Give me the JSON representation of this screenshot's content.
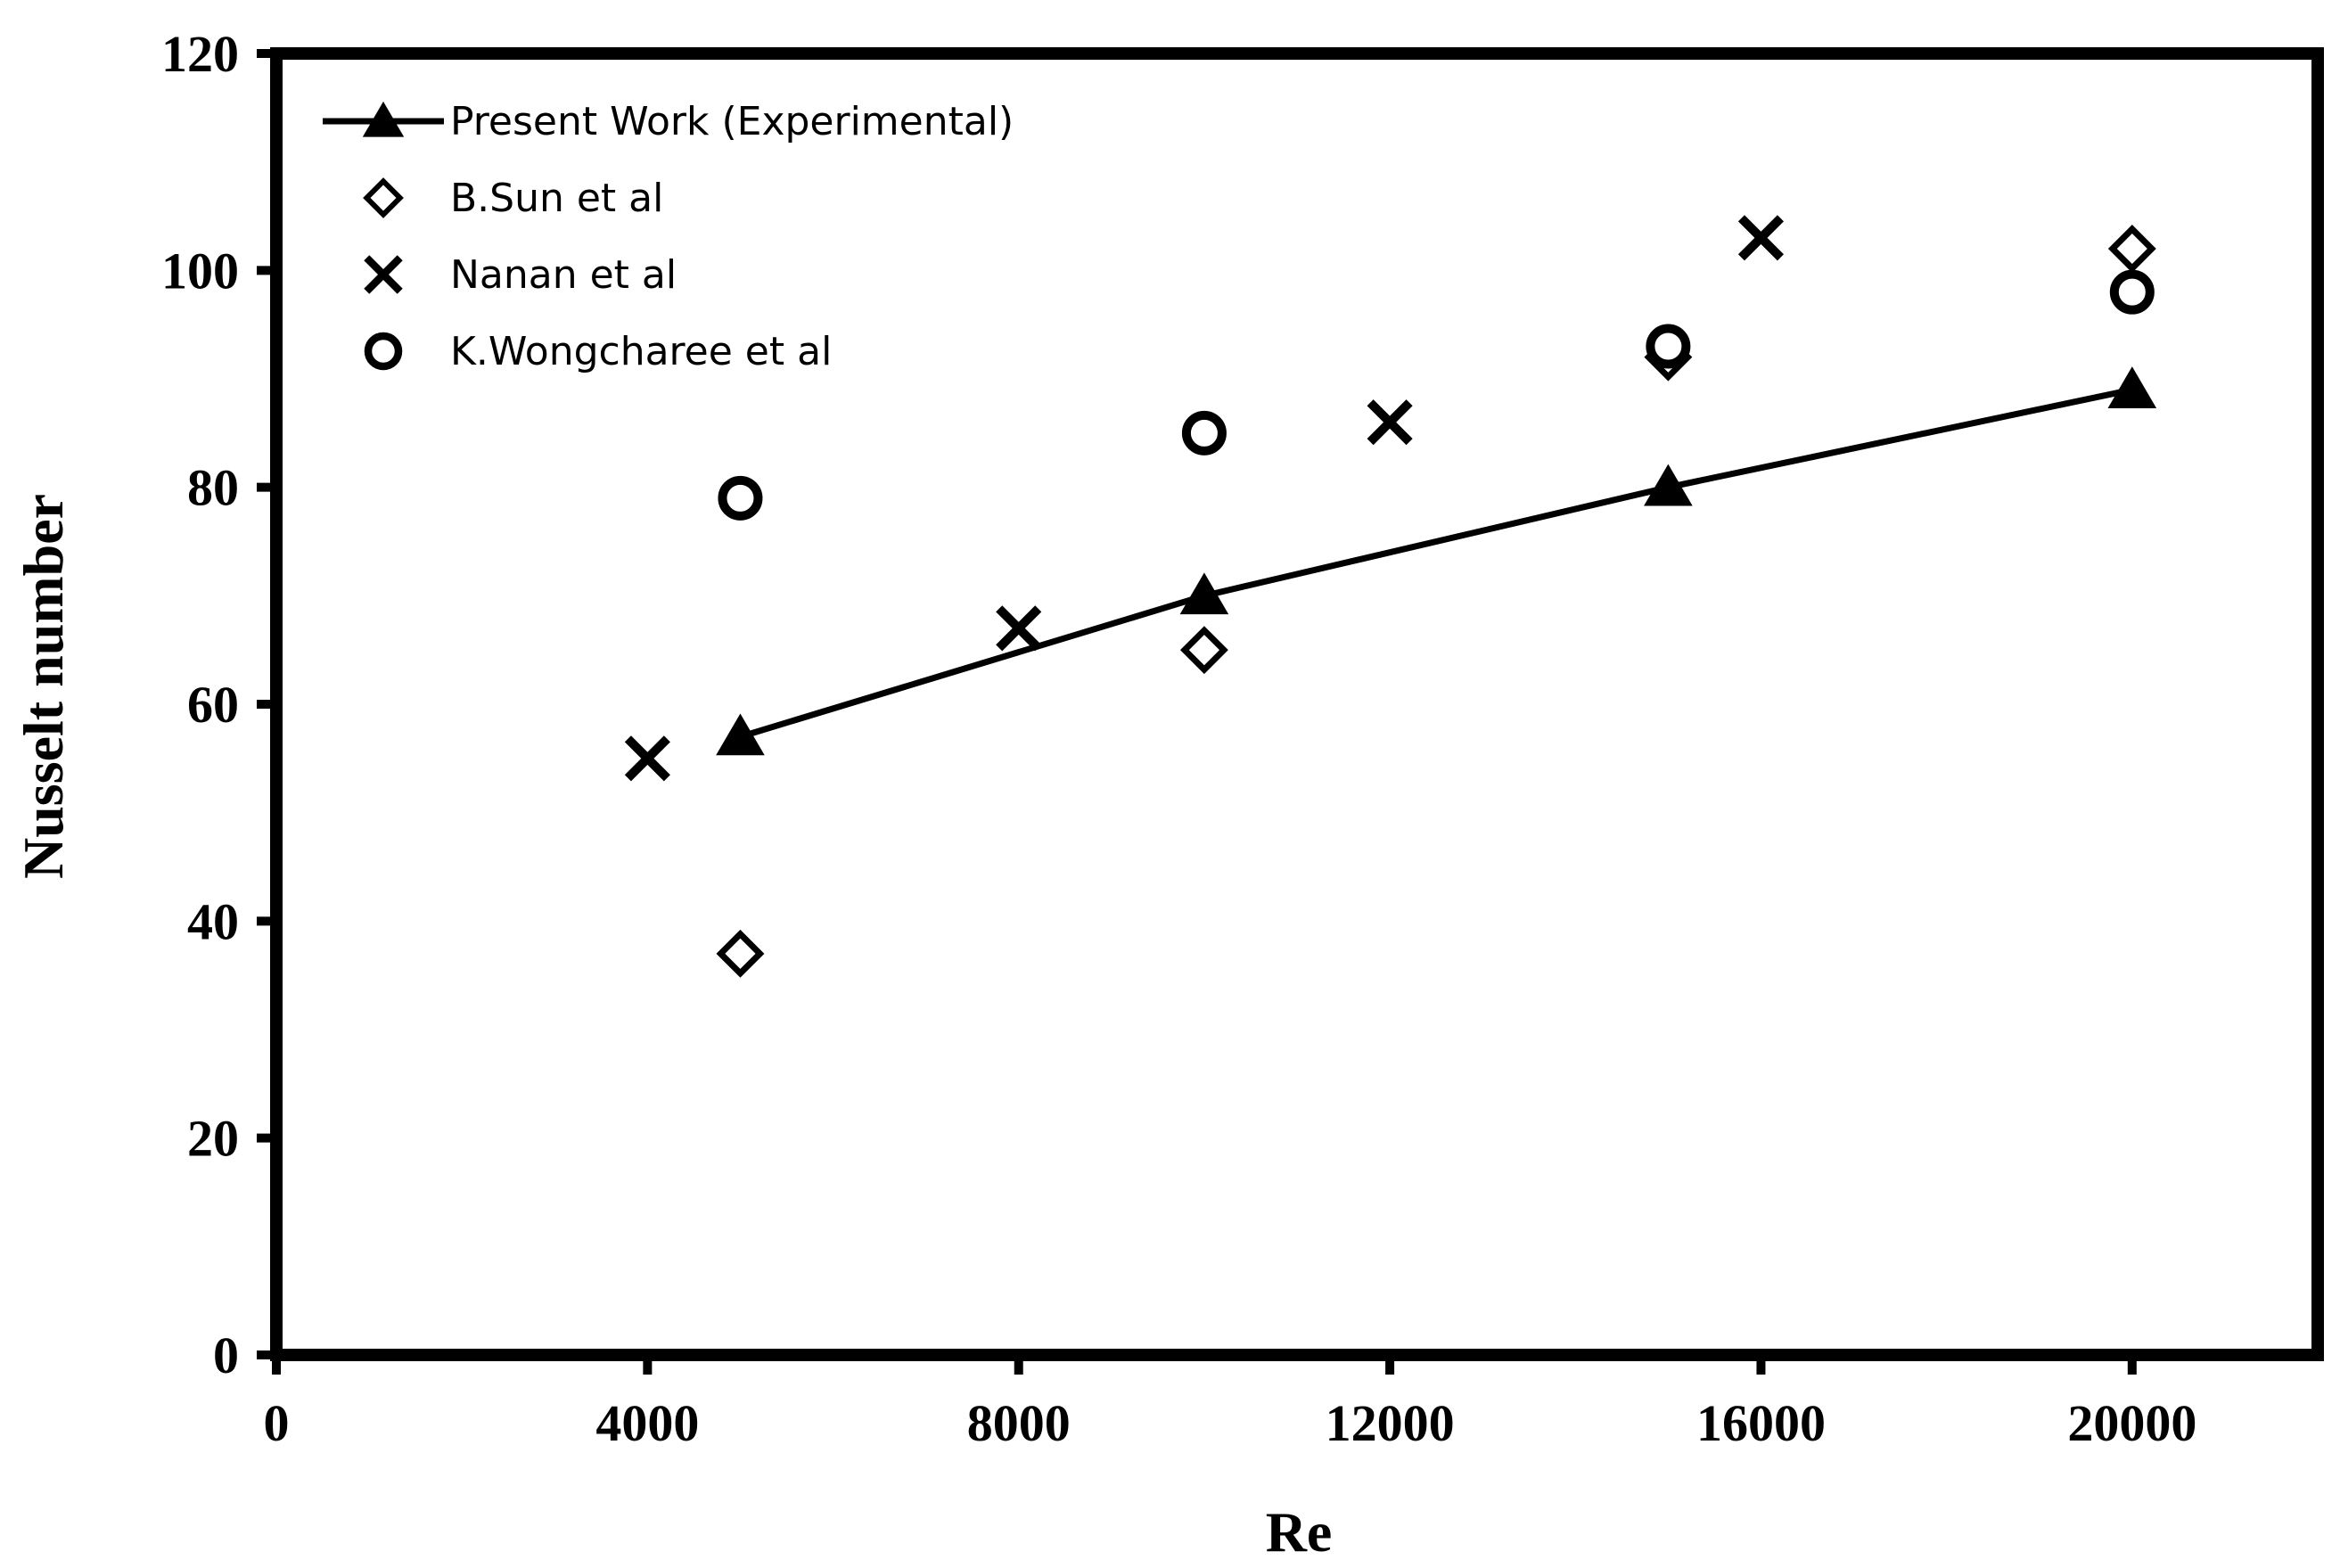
{
  "chart_data": {
    "type": "scatter",
    "xlabel": "Re",
    "ylabel": "Nusselt number",
    "xlim": [
      0,
      22000
    ],
    "ylim": [
      0,
      120
    ],
    "x_ticks": [
      "0",
      "4000",
      "8000",
      "12000",
      "16000",
      "20000"
    ],
    "y_ticks": [
      "0",
      "20",
      "40",
      "60",
      "80",
      "100",
      "120"
    ],
    "x_tick_values": [
      0,
      4000,
      8000,
      12000,
      16000,
      20000
    ],
    "y_tick_values": [
      0,
      20,
      40,
      60,
      80,
      100,
      120
    ],
    "grid": false,
    "legend_position": "top-left",
    "series": [
      {
        "name": "Present Work (Experimental)",
        "marker": "triangle-filled",
        "line": true,
        "color": "#000000",
        "x": [
          5000,
          10000,
          15000,
          20000
        ],
        "y": [
          57,
          70,
          80,
          89
        ]
      },
      {
        "name": "B.Sun et al",
        "marker": "diamond-open",
        "line": false,
        "color": "#000000",
        "x": [
          5000,
          10000,
          15000,
          20000
        ],
        "y": [
          37,
          65,
          92,
          102
        ]
      },
      {
        "name": "Nanan et al",
        "marker": "cross",
        "line": false,
        "color": "#000000",
        "x": [
          4000,
          8000,
          12000,
          16000
        ],
        "y": [
          55,
          67,
          86,
          103
        ]
      },
      {
        "name": "K.Wongcharee et al",
        "marker": "circle-open",
        "line": false,
        "color": "#000000",
        "x": [
          5000,
          10000,
          15000,
          20000
        ],
        "y": [
          79,
          85,
          93,
          98
        ]
      }
    ]
  }
}
